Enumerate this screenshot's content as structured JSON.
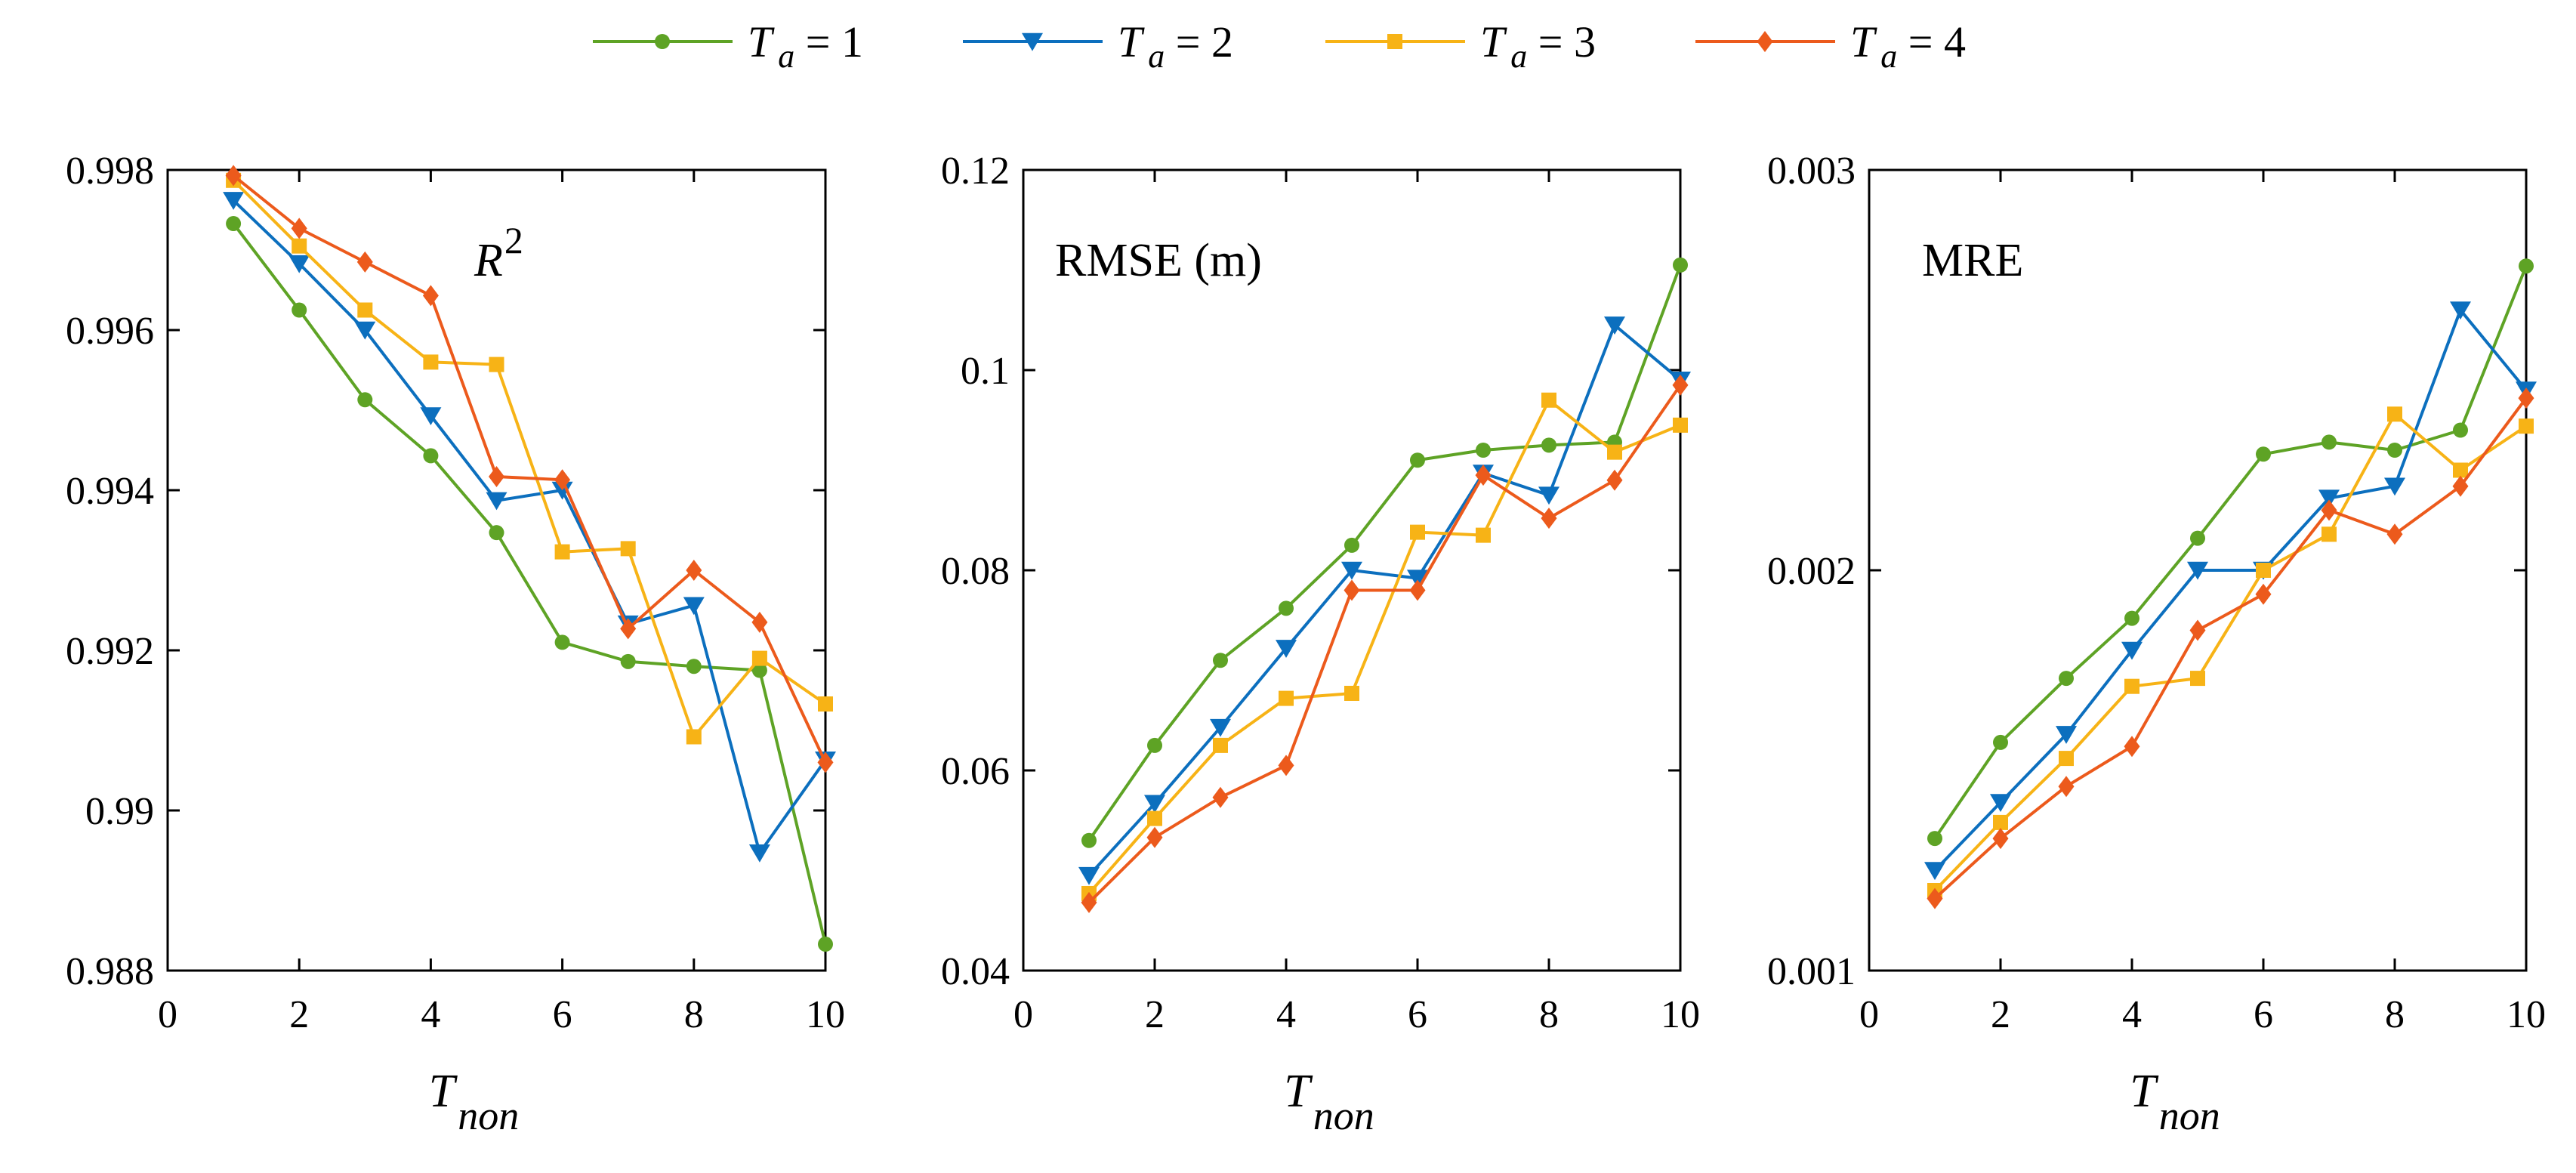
{
  "legend": {
    "entries": [
      {
        "sym": "T",
        "sub": "a",
        "text": " = 1",
        "color": "#5EA325",
        "marker": "circle"
      },
      {
        "sym": "T",
        "sub": "a",
        "text": " = 2",
        "color": "#0C6FBE",
        "marker": "triangle-down"
      },
      {
        "sym": "T",
        "sub": "a",
        "text": " = 3",
        "color": "#F7B316",
        "marker": "square"
      },
      {
        "sym": "T",
        "sub": "a",
        "text": " = 4",
        "color": "#EC5A1C",
        "marker": "diamond"
      }
    ]
  },
  "chart_data": [
    {
      "type": "line",
      "label": "R",
      "label_sup": "2",
      "label_italic": true,
      "xlabel": "T",
      "xlabel_sub": "non",
      "xlim": [
        0,
        10
      ],
      "ylim": [
        0.988,
        0.998
      ],
      "xticks": [
        0,
        2,
        4,
        6,
        8,
        10
      ],
      "yticks": [
        0.988,
        0.99,
        0.992,
        0.994,
        0.996,
        0.998
      ],
      "ytick_labels": [
        "0.988",
        "0.99",
        "0.992",
        "0.994",
        "0.996",
        "0.998"
      ],
      "x": [
        1,
        2,
        3,
        4,
        5,
        6,
        7,
        8,
        9,
        10
      ],
      "series": [
        {
          "name": "Ta = 1",
          "values": [
            0.99733,
            0.99625,
            0.99513,
            0.99443,
            0.99347,
            0.9921,
            0.99186,
            0.9918,
            0.99175,
            0.98833
          ]
        },
        {
          "name": "Ta = 2",
          "values": [
            0.99762,
            0.99683,
            0.996,
            0.99493,
            0.99387,
            0.994,
            0.99233,
            0.99256,
            0.98947,
            0.99063
          ]
        },
        {
          "name": "Ta = 3",
          "values": [
            0.99787,
            0.99705,
            0.99625,
            0.9956,
            0.99557,
            0.99323,
            0.99327,
            0.99092,
            0.9919,
            0.99133
          ]
        },
        {
          "name": "Ta = 4",
          "values": [
            0.99793,
            0.99727,
            0.99685,
            0.99643,
            0.99417,
            0.99413,
            0.99227,
            0.993,
            0.99235,
            0.9906
          ]
        }
      ]
    },
    {
      "type": "line",
      "label": "RMSE (m)",
      "label_italic": false,
      "xlabel": "T",
      "xlabel_sub": "non",
      "xlim": [
        0,
        10
      ],
      "ylim": [
        0.04,
        0.12
      ],
      "xticks": [
        0,
        2,
        4,
        6,
        8,
        10
      ],
      "yticks": [
        0.04,
        0.06,
        0.08,
        0.1,
        0.12
      ],
      "ytick_labels": [
        "0.04",
        "0.06",
        "0.08",
        "0.1",
        "0.12"
      ],
      "x": [
        1,
        2,
        3,
        4,
        5,
        6,
        7,
        8,
        9,
        10
      ],
      "series": [
        {
          "name": "Ta = 1",
          "values": [
            0.053,
            0.0625,
            0.071,
            0.0762,
            0.0825,
            0.091,
            0.092,
            0.0925,
            0.0928,
            0.1105
          ]
        },
        {
          "name": "Ta = 2",
          "values": [
            0.0495,
            0.0567,
            0.0643,
            0.0722,
            0.08,
            0.0792,
            0.0897,
            0.0875,
            0.1045,
            0.099
          ]
        },
        {
          "name": "Ta = 3",
          "values": [
            0.0477,
            0.0552,
            0.0625,
            0.0672,
            0.0677,
            0.0838,
            0.0835,
            0.097,
            0.0918,
            0.0945
          ]
        },
        {
          "name": "Ta = 4",
          "values": [
            0.0468,
            0.0533,
            0.0573,
            0.0605,
            0.078,
            0.078,
            0.0895,
            0.0852,
            0.089,
            0.0985
          ]
        }
      ]
    },
    {
      "type": "line",
      "label": "MRE",
      "label_italic": false,
      "xlabel": "T",
      "xlabel_sub": "non",
      "xlim": [
        0,
        10
      ],
      "ylim": [
        0.001,
        0.003
      ],
      "xticks": [
        0,
        2,
        4,
        6,
        8,
        10
      ],
      "yticks": [
        0.001,
        0.002,
        0.003
      ],
      "ytick_labels": [
        "0.001",
        "0.002",
        "0.003"
      ],
      "x": [
        1,
        2,
        3,
        4,
        5,
        6,
        7,
        8,
        9,
        10
      ],
      "series": [
        {
          "name": "Ta = 1",
          "values": [
            0.00133,
            0.00157,
            0.00173,
            0.00188,
            0.00208,
            0.00229,
            0.00232,
            0.0023,
            0.00235,
            0.00276
          ]
        },
        {
          "name": "Ta = 2",
          "values": [
            0.00125,
            0.00142,
            0.00159,
            0.0018,
            0.002,
            0.002,
            0.00218,
            0.00221,
            0.00265,
            0.00245
          ]
        },
        {
          "name": "Ta = 3",
          "values": [
            0.0012,
            0.00137,
            0.00153,
            0.00171,
            0.00173,
            0.002,
            0.00209,
            0.00239,
            0.00225,
            0.00236
          ]
        },
        {
          "name": "Ta = 4",
          "values": [
            0.00118,
            0.00133,
            0.00146,
            0.00156,
            0.00185,
            0.00194,
            0.00215,
            0.00209,
            0.00221,
            0.00243
          ]
        }
      ]
    }
  ]
}
